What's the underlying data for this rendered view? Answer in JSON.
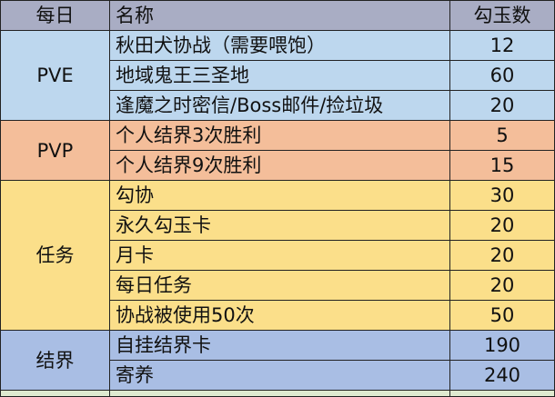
{
  "header": {
    "col1": "每日",
    "col2": "名称",
    "col3": "勾玉数"
  },
  "colors": {
    "header": "#a9adc4",
    "PVE": "#bdd7ee",
    "PVP": "#f4be9a",
    "任务": "#fbdf8a",
    "结界": "#a9bee4"
  },
  "groups": [
    {
      "category": "PVE",
      "rows": [
        {
          "name": "秋田犬协战（需要喂饱）",
          "value": "12"
        },
        {
          "name": "地域鬼王三圣地",
          "value": "60"
        },
        {
          "name": "逢魔之时密信/Boss邮件/捡垃圾",
          "value": "20"
        }
      ]
    },
    {
      "category": "PVP",
      "rows": [
        {
          "name": "个人结界3次胜利",
          "value": "5"
        },
        {
          "name": "个人结界9次胜利",
          "value": "15"
        }
      ]
    },
    {
      "category": "任务",
      "rows": [
        {
          "name": "勾协",
          "value": "30"
        },
        {
          "name": "永久勾玉卡",
          "value": "20"
        },
        {
          "name": "月卡",
          "value": "20"
        },
        {
          "name": "每日任务",
          "value": "20"
        },
        {
          "name": "协战被使用50次",
          "value": "50"
        }
      ]
    },
    {
      "category": "结界",
      "rows": [
        {
          "name": "自挂结界卡",
          "value": "190"
        },
        {
          "name": "寄养",
          "value": "240"
        }
      ]
    }
  ]
}
